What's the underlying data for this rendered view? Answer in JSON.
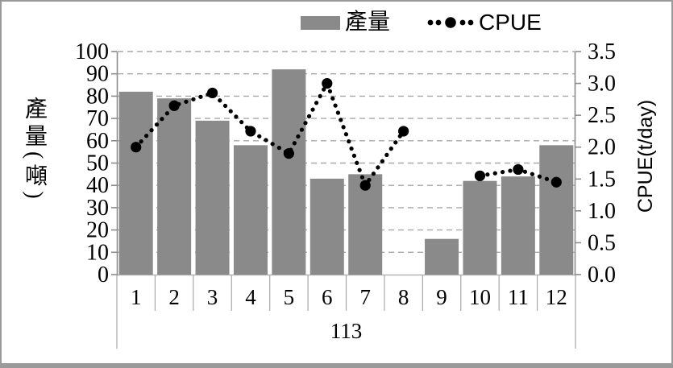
{
  "chart_data": {
    "type": "bar+line combo",
    "categories": [
      "1",
      "2",
      "3",
      "4",
      "5",
      "6",
      "7",
      "8",
      "9",
      "10",
      "11",
      "12"
    ],
    "x_group_label": "113",
    "series": [
      {
        "name": "產量",
        "type": "bar",
        "axis": "left",
        "color": "#8a8a8a",
        "values": [
          82,
          79,
          69,
          58,
          92,
          43,
          45,
          null,
          16,
          42,
          44,
          58
        ]
      },
      {
        "name": "CPUE",
        "type": "dotted-line",
        "axis": "right",
        "color": "#000000",
        "values": [
          2.0,
          2.65,
          2.85,
          2.25,
          1.9,
          3.0,
          1.4,
          2.25,
          null,
          1.55,
          1.65,
          1.45
        ]
      }
    ],
    "left_axis": {
      "title": "產量(噸)",
      "min": 0,
      "max": 100,
      "step": 10,
      "ticks": [
        "0",
        "10",
        "20",
        "30",
        "40",
        "50",
        "60",
        "70",
        "80",
        "90",
        "100"
      ]
    },
    "right_axis": {
      "title": "CPUE(t/day)",
      "min": 0,
      "max": 3.5,
      "step": 0.5,
      "ticks": [
        "0.0",
        "0.5",
        "1.0",
        "1.5",
        "2.0",
        "2.5",
        "3.0",
        "3.5"
      ]
    },
    "legend": [
      {
        "label": "產量",
        "marker": "gray-bar-swatch"
      },
      {
        "label": "CPUE",
        "marker": "black-dotted-line-with-round-markers"
      }
    ],
    "grid": "horizontal-dashed",
    "legend_position": "top",
    "colors": {
      "bar": "#8a8a8a",
      "line": "#000000",
      "gridline": "#a8a8a8",
      "axis": "#8c8c8c",
      "frame_border": "#9a9a9a"
    }
  }
}
